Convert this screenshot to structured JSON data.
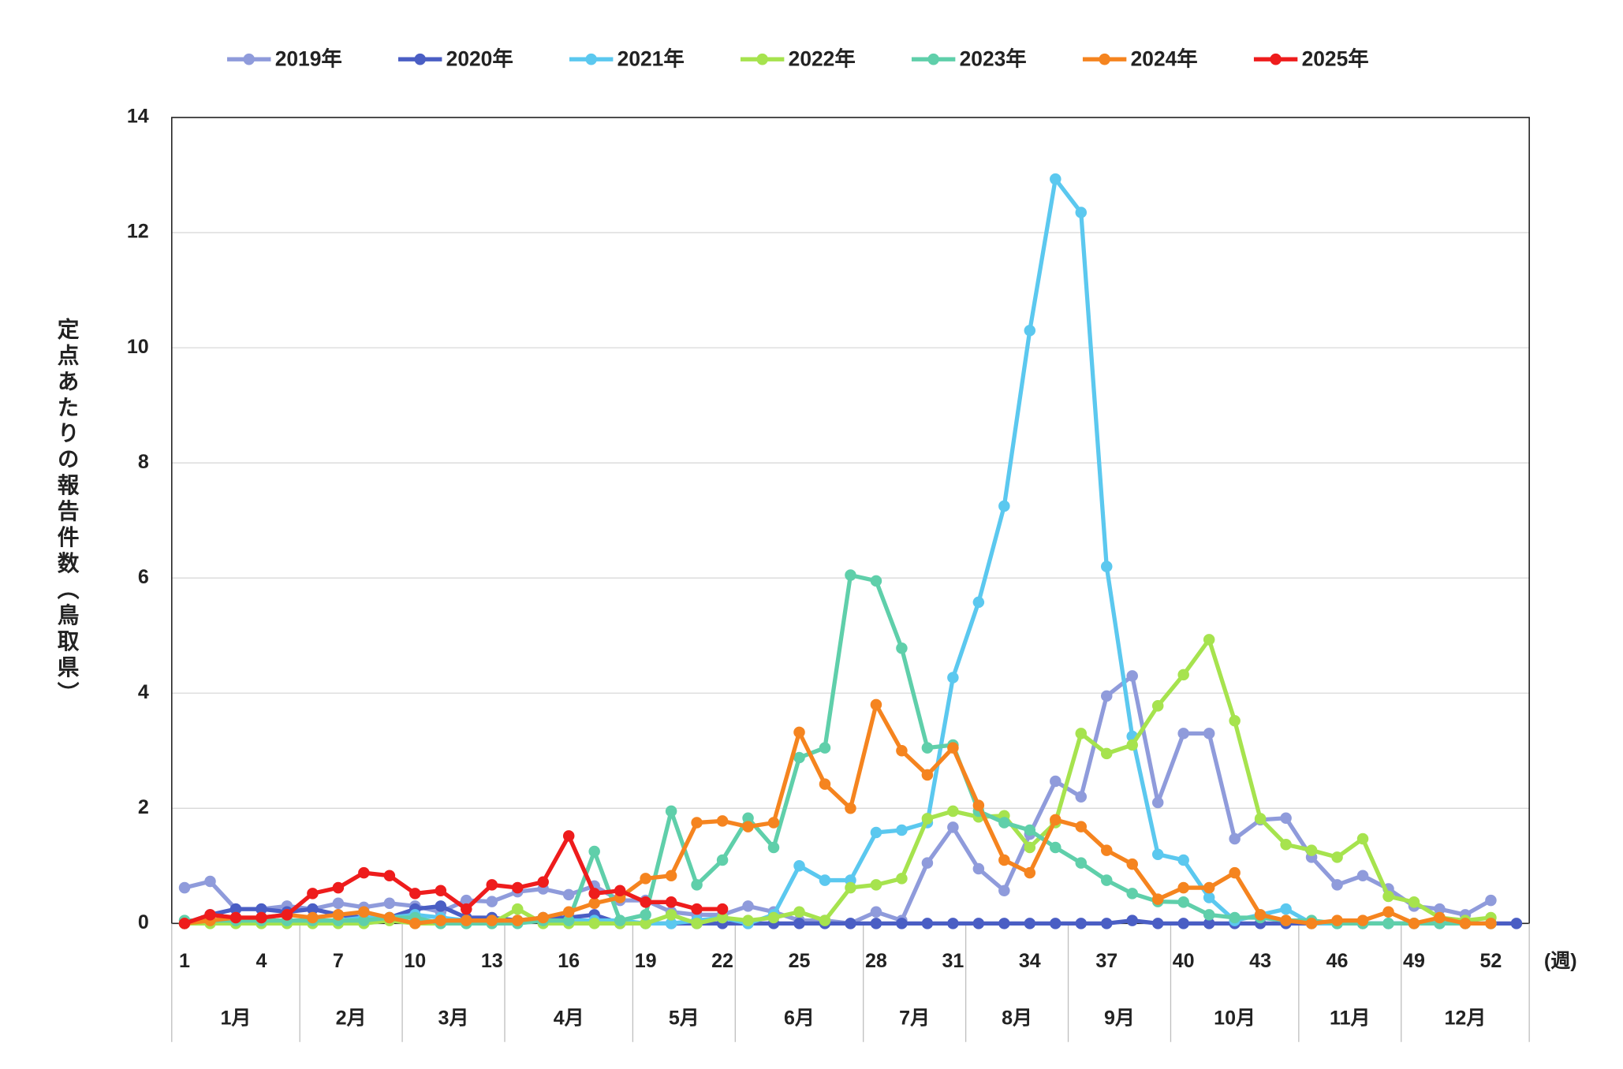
{
  "chart_data": {
    "type": "line",
    "y_axis_label": "定点あたりの報告件数（鳥取県）",
    "x_axis_label": "(週)",
    "x": [
      1,
      2,
      3,
      4,
      5,
      6,
      7,
      8,
      9,
      10,
      11,
      12,
      13,
      14,
      15,
      16,
      17,
      18,
      19,
      20,
      21,
      22,
      23,
      24,
      25,
      26,
      27,
      28,
      29,
      30,
      31,
      32,
      33,
      34,
      35,
      36,
      37,
      38,
      39,
      40,
      41,
      42,
      43,
      44,
      45,
      46,
      47,
      48,
      49,
      50,
      51,
      52,
      53
    ],
    "xlim": [
      0.5,
      53.5
    ],
    "xticks": [
      1,
      4,
      7,
      10,
      13,
      16,
      19,
      22,
      25,
      28,
      31,
      34,
      37,
      40,
      43,
      46,
      49,
      52
    ],
    "ylim": [
      0,
      14
    ],
    "yticks": [
      0,
      2,
      4,
      6,
      8,
      10,
      12,
      14
    ],
    "grid": true,
    "months": [
      {
        "label": "1月",
        "start": 0.5,
        "end": 5.5
      },
      {
        "label": "2月",
        "start": 5.5,
        "end": 9.5
      },
      {
        "label": "3月",
        "start": 9.5,
        "end": 13.5
      },
      {
        "label": "4月",
        "start": 13.5,
        "end": 18.5
      },
      {
        "label": "5月",
        "start": 18.5,
        "end": 22.5
      },
      {
        "label": "6月",
        "start": 22.5,
        "end": 27.5
      },
      {
        "label": "7月",
        "start": 27.5,
        "end": 31.5
      },
      {
        "label": "8月",
        "start": 31.5,
        "end": 35.5
      },
      {
        "label": "9月",
        "start": 35.5,
        "end": 39.5
      },
      {
        "label": "10月",
        "start": 39.5,
        "end": 44.5
      },
      {
        "label": "11月",
        "start": 44.5,
        "end": 48.5
      },
      {
        "label": "12月",
        "start": 48.5,
        "end": 53.5
      }
    ],
    "legend": "top",
    "series": [
      {
        "name": "2019年",
        "color": "#8f9bdb",
        "values": [
          0.62,
          0.73,
          0.25,
          0.25,
          0.3,
          0.25,
          0.35,
          0.28,
          0.35,
          0.3,
          0.2,
          0.4,
          0.38,
          0.55,
          0.6,
          0.5,
          0.65,
          0.4,
          0.4,
          0.2,
          0.15,
          0.15,
          0.3,
          0.2,
          0.05,
          0.05,
          0,
          0.2,
          0.05,
          1.05,
          1.67,
          0.95,
          0.57,
          1.55,
          2.47,
          2.2,
          3.95,
          4.3,
          2.1,
          3.3,
          3.3,
          1.47,
          1.8,
          1.83,
          1.15,
          0.67,
          0.83,
          0.6,
          0.3,
          0.25,
          0.15,
          0.4,
          null
        ]
      },
      {
        "name": "2020年",
        "color": "#4a5ec4",
        "values": [
          0,
          0.15,
          0.25,
          0.25,
          0.2,
          0.25,
          0.15,
          0.1,
          0.1,
          0.25,
          0.3,
          0.1,
          0.1,
          0.05,
          0.1,
          0.1,
          0.15,
          0,
          0,
          0,
          0,
          0,
          0,
          0,
          0,
          0,
          0,
          0,
          0,
          0,
          0,
          0,
          0,
          0,
          0,
          0,
          0,
          0.05,
          0,
          0,
          0,
          0,
          0,
          0,
          0,
          0,
          0,
          0,
          0,
          0,
          0,
          0,
          0
        ]
      },
      {
        "name": "2021年",
        "color": "#5bc8ef",
        "values": [
          0,
          0.05,
          0.05,
          0.05,
          0.05,
          0.05,
          0.05,
          0.1,
          0.1,
          0.15,
          0.1,
          0.05,
          0.05,
          0.05,
          0.05,
          0.05,
          0.05,
          0.05,
          0,
          0,
          0.05,
          0.1,
          0,
          0.15,
          1.0,
          0.75,
          0.75,
          1.58,
          1.62,
          1.75,
          4.27,
          5.58,
          7.25,
          10.3,
          12.93,
          12.35,
          6.2,
          3.25,
          1.2,
          1.1,
          0.45,
          0.05,
          0.15,
          0.25,
          0,
          0,
          0,
          0,
          0,
          0,
          0,
          0,
          null
        ]
      },
      {
        "name": "2022年",
        "color": "#a6e34e",
        "values": [
          0,
          0,
          0,
          0,
          0,
          0,
          0,
          0,
          0.05,
          0,
          0,
          0,
          0,
          0.25,
          0,
          0,
          0,
          0,
          0,
          0.15,
          0,
          0.1,
          0.05,
          0.1,
          0.2,
          0.05,
          0.62,
          0.67,
          0.78,
          1.82,
          1.95,
          1.85,
          1.87,
          1.32,
          1.75,
          3.3,
          2.95,
          3.1,
          3.78,
          4.32,
          4.93,
          3.52,
          1.82,
          1.37,
          1.27,
          1.15,
          1.47,
          0.47,
          0.37,
          0.1,
          0.05,
          0.1,
          null
        ]
      },
      {
        "name": "2023年",
        "color": "#5fcfaa",
        "values": [
          0.05,
          0.05,
          0.05,
          0.05,
          0.05,
          0.05,
          0.05,
          0.05,
          0.1,
          0.1,
          0,
          0,
          0,
          0,
          0.05,
          0.05,
          1.25,
          0.05,
          0.15,
          1.95,
          0.67,
          1.1,
          1.83,
          1.32,
          2.88,
          3.05,
          6.05,
          5.95,
          4.78,
          3.05,
          3.1,
          1.95,
          1.75,
          1.62,
          1.32,
          1.05,
          0.75,
          0.52,
          0.38,
          0.37,
          0.15,
          0.1,
          0.1,
          0.05,
          0.05,
          0,
          0,
          0,
          0,
          0,
          0,
          0,
          null
        ]
      },
      {
        "name": "2024年",
        "color": "#f5841f",
        "values": [
          0,
          0.05,
          0.1,
          0.1,
          0.15,
          0.1,
          0.15,
          0.2,
          0.1,
          0,
          0.05,
          0.05,
          0.05,
          0.05,
          0.1,
          0.2,
          0.35,
          0.45,
          0.78,
          0.83,
          1.75,
          1.78,
          1.68,
          1.75,
          3.32,
          2.42,
          2.0,
          3.8,
          3.0,
          2.58,
          3.05,
          2.05,
          1.1,
          0.88,
          1.8,
          1.68,
          1.27,
          1.03,
          0.42,
          0.62,
          0.62,
          0.88,
          0.15,
          0.05,
          0,
          0.05,
          0.05,
          0.2,
          0,
          0.1,
          0,
          0,
          null
        ]
      },
      {
        "name": "2025年",
        "color": "#ee1c1c",
        "values": [
          0,
          0.15,
          0.1,
          0.1,
          0.15,
          0.52,
          0.62,
          0.88,
          0.83,
          0.52,
          0.57,
          0.25,
          0.67,
          0.62,
          0.72,
          1.52,
          0.52,
          0.57,
          0.37,
          0.37,
          0.25,
          0.25,
          null,
          null,
          null,
          null,
          null,
          null,
          null,
          null,
          null,
          null,
          null,
          null,
          null,
          null,
          null,
          null,
          null,
          null,
          null,
          null,
          null,
          null,
          null,
          null,
          null,
          null,
          null,
          null,
          null,
          null,
          null
        ]
      }
    ]
  }
}
